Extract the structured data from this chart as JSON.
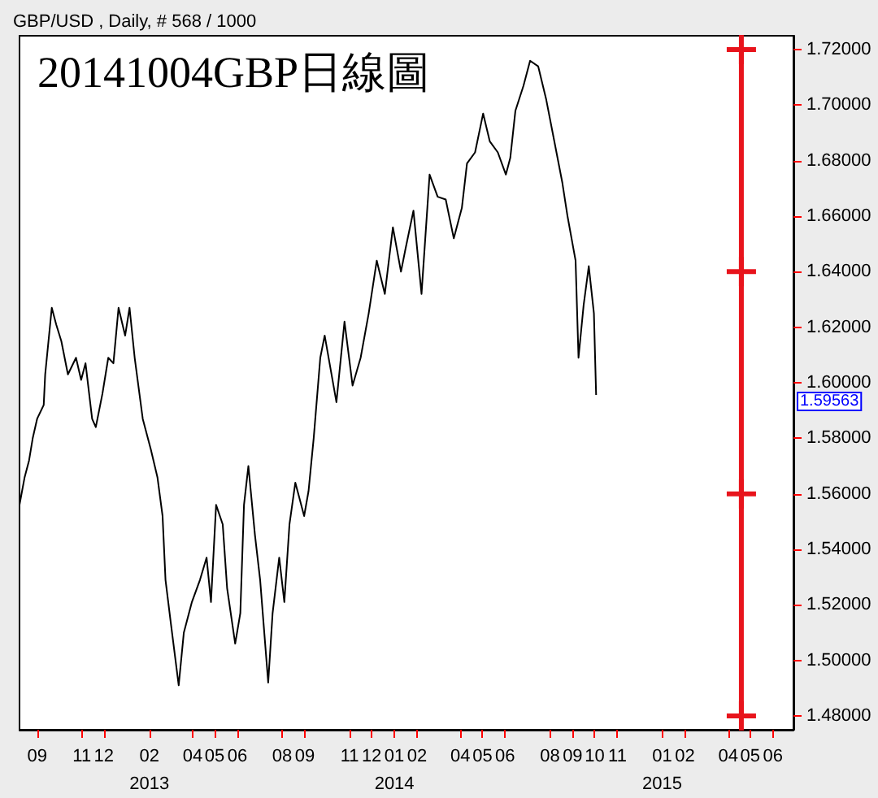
{
  "chart_data": {
    "type": "line",
    "title": "20141004GBP日線圖",
    "subtitle": "GBP/USD , Daily, # 568 / 1000",
    "annotations": [
      "1.59563"
    ],
    "grid": false,
    "xlim": [
      "2012-08-08",
      "2015-06-29"
    ],
    "xticks": [
      {
        "value": "2012-09-01",
        "label": "09"
      },
      {
        "value": "2012-11-01",
        "label": "11"
      },
      {
        "value": "2012-12-01",
        "label": "12"
      },
      {
        "value": "2013-02-01",
        "label": "02\n2013"
      },
      {
        "value": "2013-04-01",
        "label": "04"
      },
      {
        "value": "2013-05-01",
        "label": "05"
      },
      {
        "value": "2013-06-01",
        "label": "06"
      },
      {
        "value": "2013-08-01",
        "label": "08"
      },
      {
        "value": "2013-09-01",
        "label": "09"
      },
      {
        "value": "2013-11-01",
        "label": "11"
      },
      {
        "value": "2013-12-01",
        "label": "12"
      },
      {
        "value": "2014-01-01",
        "label": "01\n2014"
      },
      {
        "value": "2014-02-01",
        "label": "02"
      },
      {
        "value": "2014-04-01",
        "label": "04"
      },
      {
        "value": "2014-05-01",
        "label": "05"
      },
      {
        "value": "2014-06-01",
        "label": "06"
      },
      {
        "value": "2014-08-01",
        "label": "08"
      },
      {
        "value": "2014-09-01",
        "label": "09"
      },
      {
        "value": "2014-10-01",
        "label": "10"
      },
      {
        "value": "2014-11-01",
        "label": "11"
      },
      {
        "value": "2015-01-01",
        "label": "01\n2015"
      },
      {
        "value": "2015-02-01",
        "label": "02"
      },
      {
        "value": "2015-04-01",
        "label": "04"
      },
      {
        "value": "2015-05-01",
        "label": "05"
      },
      {
        "value": "2015-06-01",
        "label": "06"
      }
    ],
    "ylim": [
      1.475,
      1.725
    ],
    "yticks": [
      {
        "value": 1.48,
        "label": "1.48000"
      },
      {
        "value": 1.5,
        "label": "1.50000"
      },
      {
        "value": 1.52,
        "label": "1.52000"
      },
      {
        "value": 1.54,
        "label": "1.54000"
      },
      {
        "value": 1.56,
        "label": "1.56000"
      },
      {
        "value": 1.58,
        "label": "1.58000"
      },
      {
        "value": 1.6,
        "label": "1.60000"
      },
      {
        "value": 1.62,
        "label": "1.62000"
      },
      {
        "value": 1.64,
        "label": "1.64000"
      },
      {
        "value": 1.66,
        "label": "1.66000"
      },
      {
        "value": 1.68,
        "label": "1.68000"
      },
      {
        "value": 1.7,
        "label": "1.70000"
      },
      {
        "value": 1.72,
        "label": "1.72000"
      }
    ],
    "series": [
      {
        "color": "#000000",
        "marker": "none",
        "x": [
          "2012-08-08",
          "2012-08-15",
          "2012-08-21",
          "2012-08-26",
          "2012-09-01",
          "2012-09-10",
          "2012-09-12",
          "2012-09-21",
          "2012-09-27",
          "2012-10-04",
          "2012-10-13",
          "2012-10-24",
          "2012-10-31",
          "2012-11-06",
          "2012-11-15",
          "2012-11-20",
          "2012-11-29",
          "2012-12-07",
          "2012-12-14",
          "2012-12-21",
          "2012-12-30",
          "2013-01-05",
          "2013-01-12",
          "2013-01-23",
          "2013-02-03",
          "2013-02-12",
          "2013-02-19",
          "2013-02-23",
          "2013-03-02",
          "2013-03-13",
          "2013-03-20",
          "2013-03-31",
          "2013-04-11",
          "2013-04-20",
          "2013-04-26",
          "2013-05-03",
          "2013-05-12",
          "2013-05-18",
          "2013-05-29",
          "2013-06-05",
          "2013-06-10",
          "2013-06-16",
          "2013-06-25",
          "2013-07-02",
          "2013-07-13",
          "2013-07-19",
          "2013-07-28",
          "2013-08-04",
          "2013-08-11",
          "2013-08-19",
          "2013-08-31",
          "2013-09-06",
          "2013-09-13",
          "2013-09-22",
          "2013-09-28",
          "2013-10-14",
          "2013-10-25",
          "2013-11-05",
          "2013-11-16",
          "2013-11-27",
          "2013-12-08",
          "2013-12-19",
          "2013-12-30",
          "2014-01-10",
          "2014-01-16",
          "2014-01-27",
          "2014-02-07",
          "2014-02-18",
          "2014-03-01",
          "2014-03-12",
          "2014-03-23",
          "2014-04-03",
          "2014-04-10",
          "2014-04-21",
          "2014-05-02",
          "2014-05-11",
          "2014-05-22",
          "2014-06-02",
          "2014-06-08",
          "2014-06-15",
          "2014-06-26",
          "2014-07-05",
          "2014-07-16",
          "2014-07-27",
          "2014-08-07",
          "2014-08-18",
          "2014-08-25",
          "2014-09-05",
          "2014-09-09",
          "2014-09-16",
          "2014-09-23",
          "2014-09-30",
          "2014-10-03"
        ],
        "values": [
          1.556,
          1.566,
          1.572,
          1.58,
          1.587,
          1.592,
          1.603,
          1.627,
          1.621,
          1.615,
          1.603,
          1.609,
          1.601,
          1.607,
          1.587,
          1.584,
          1.596,
          1.609,
          1.607,
          1.627,
          1.617,
          1.627,
          1.609,
          1.587,
          1.576,
          1.566,
          1.552,
          1.529,
          1.514,
          1.491,
          1.51,
          1.521,
          1.529,
          1.537,
          1.521,
          1.556,
          1.549,
          1.526,
          1.506,
          1.517,
          1.556,
          1.57,
          1.545,
          1.529,
          1.492,
          1.517,
          1.537,
          1.521,
          1.549,
          1.564,
          1.552,
          1.561,
          1.58,
          1.609,
          1.617,
          1.593,
          1.622,
          1.599,
          1.609,
          1.625,
          1.644,
          1.632,
          1.656,
          1.64,
          1.648,
          1.662,
          1.632,
          1.675,
          1.667,
          1.666,
          1.652,
          1.663,
          1.679,
          1.683,
          1.697,
          1.687,
          1.683,
          1.675,
          1.681,
          1.698,
          1.707,
          1.716,
          1.714,
          1.702,
          1.687,
          1.672,
          1.66,
          1.644,
          1.609,
          1.628,
          1.642,
          1.625,
          1.59563
        ]
      },
      {
        "color": "#e8141c",
        "marker": "cross",
        "x": [
          "2015-04-19",
          "2015-04-19",
          "2015-04-19",
          "2015-04-19"
        ],
        "values": [
          1.48,
          1.56,
          1.64,
          1.72
        ]
      }
    ]
  }
}
